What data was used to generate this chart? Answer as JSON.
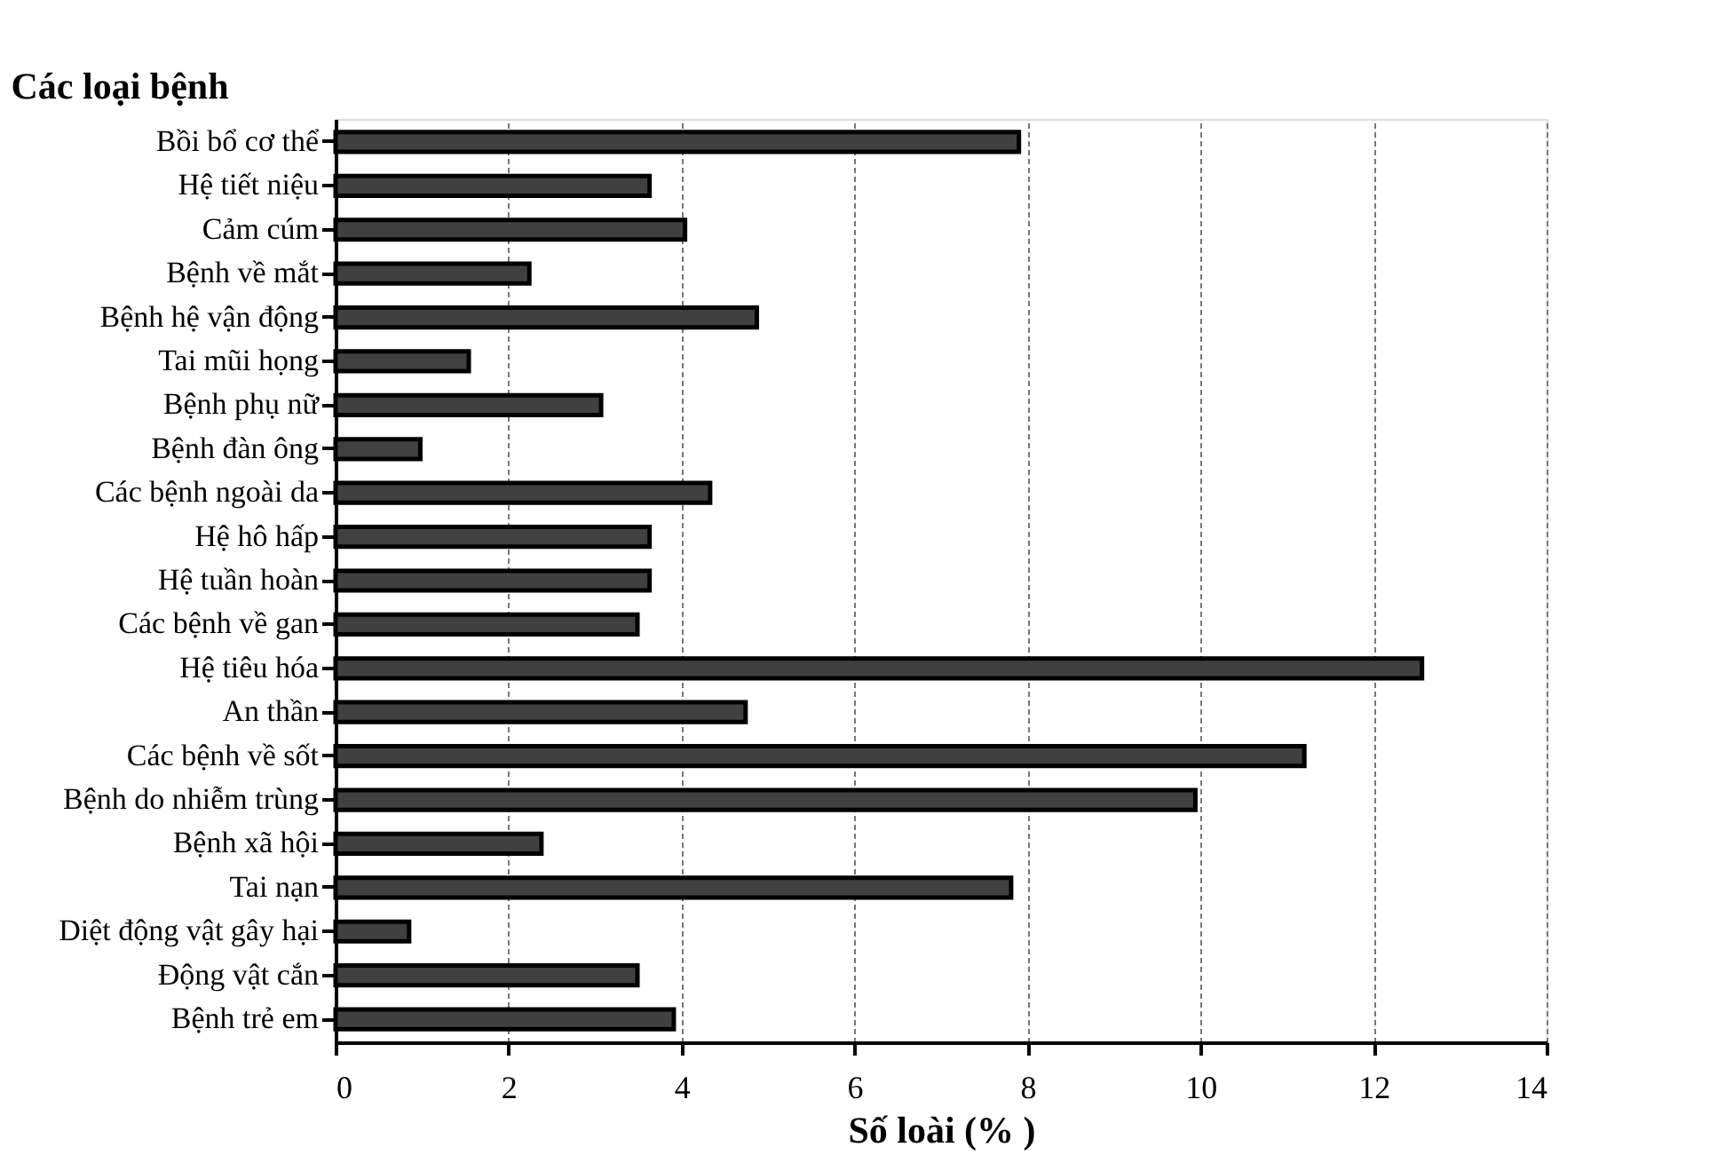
{
  "chart_data": {
    "type": "bar",
    "orientation": "horizontal",
    "ylabel": "Các loại bệnh",
    "xlabel": "Số loài (% )",
    "categories": [
      "Bồi bổ cơ thể",
      "Hệ tiết niệu",
      "Cảm cúm",
      "Bệnh về mắt",
      "Bệnh hệ vận động",
      "Tai mũi họng",
      "Bệnh phụ nữ",
      "Bệnh đàn ông",
      "Các bệnh ngoài da",
      "Hệ hô hấp",
      "Hệ tuần hoàn",
      "Các bệnh về gan",
      "Hệ tiêu hóa",
      "An thần",
      "Các bệnh về sốt",
      "Bệnh do nhiễm trùng",
      "Bệnh xã hội",
      "Tai nạn",
      "Diệt động vật gây hại",
      "Động vật cắn",
      "Bệnh trẻ em"
    ],
    "values": [
      7.9,
      3.63,
      4.04,
      2.24,
      4.87,
      1.54,
      3.07,
      0.98,
      4.33,
      3.63,
      3.63,
      3.49,
      12.56,
      4.74,
      11.2,
      9.94,
      2.38,
      7.81,
      0.85,
      3.49,
      3.91
    ],
    "color": "#404040",
    "xlim": [
      0,
      14
    ],
    "xticks": [
      0,
      2,
      4,
      6,
      8,
      10,
      12,
      14
    ],
    "grid": "x"
  }
}
